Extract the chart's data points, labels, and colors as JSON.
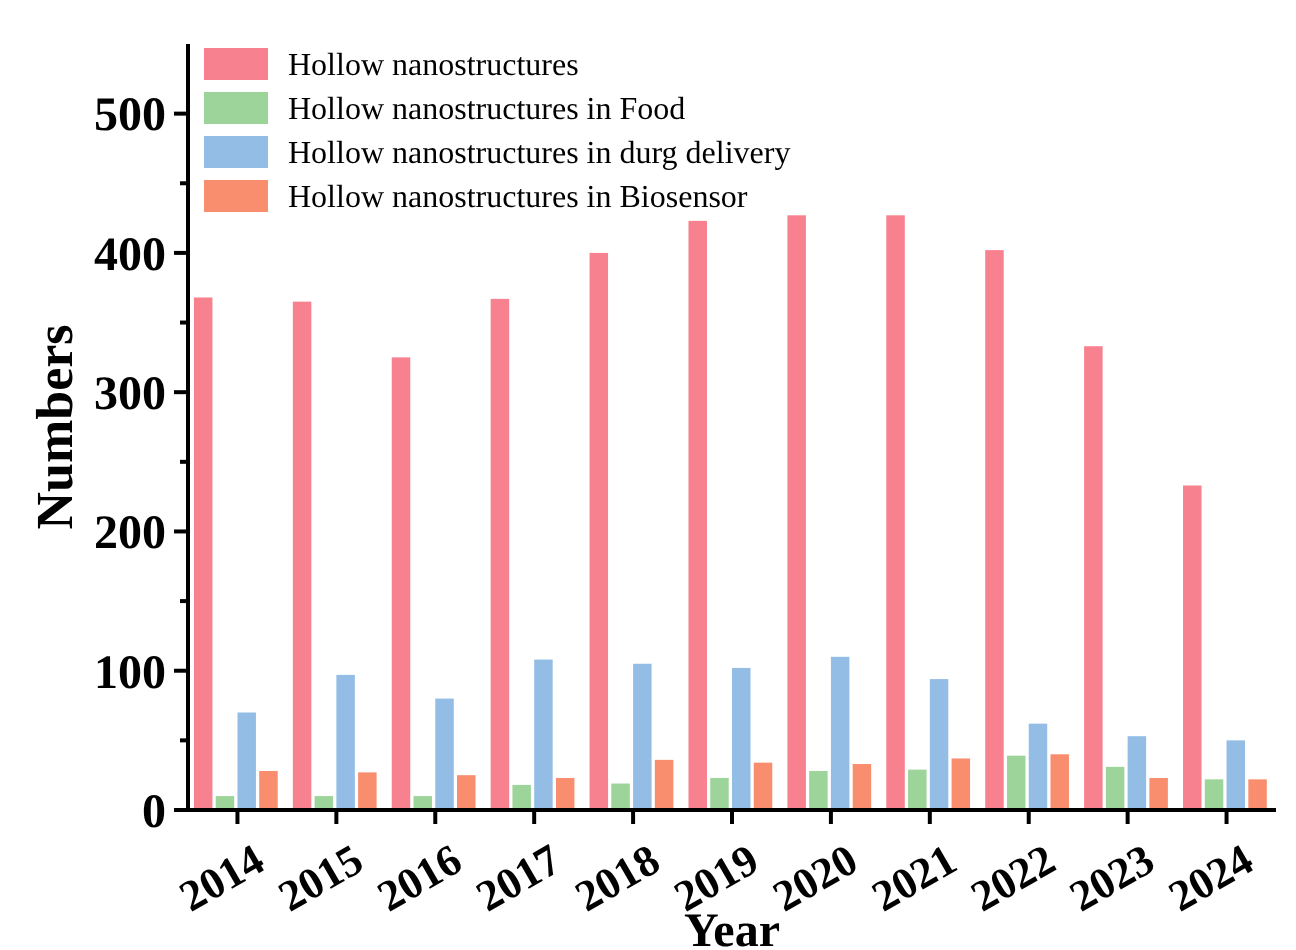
{
  "chart_data": {
    "type": "bar",
    "xlabel": "Year",
    "ylabel": "Numbers",
    "categories": [
      "2014",
      "2015",
      "2016",
      "2017",
      "2018",
      "2019",
      "2020",
      "2021",
      "2022",
      "2023",
      "2024"
    ],
    "series": [
      {
        "name": "Hollow nanostructures",
        "color": "#f8818f",
        "values": [
          368,
          365,
          325,
          367,
          400,
          423,
          427,
          427,
          402,
          333,
          233
        ]
      },
      {
        "name": "Hollow nanostructures in Food",
        "color": "#9dd49a",
        "values": [
          10,
          10,
          10,
          18,
          19,
          23,
          28,
          29,
          39,
          31,
          22
        ]
      },
      {
        "name": "Hollow nanostructures in durg delivery",
        "color": "#94bde6",
        "values": [
          70,
          97,
          80,
          108,
          105,
          102,
          110,
          94,
          62,
          53,
          50
        ]
      },
      {
        "name": "Hollow nanostructures in Biosensor",
        "color": "#f98e6e",
        "values": [
          28,
          27,
          25,
          23,
          36,
          34,
          33,
          37,
          40,
          23,
          22
        ]
      }
    ],
    "ylim": [
      0,
      550
    ],
    "yticks": [
      0,
      {
        "value": 50,
        "label": null
      },
      100,
      {
        "value": 150,
        "label": null
      },
      200,
      {
        "value": 250,
        "label": null
      },
      300,
      {
        "value": 350,
        "label": null
      },
      400,
      {
        "value": 450,
        "label": null
      },
      500
    ],
    "legend": "top left"
  }
}
